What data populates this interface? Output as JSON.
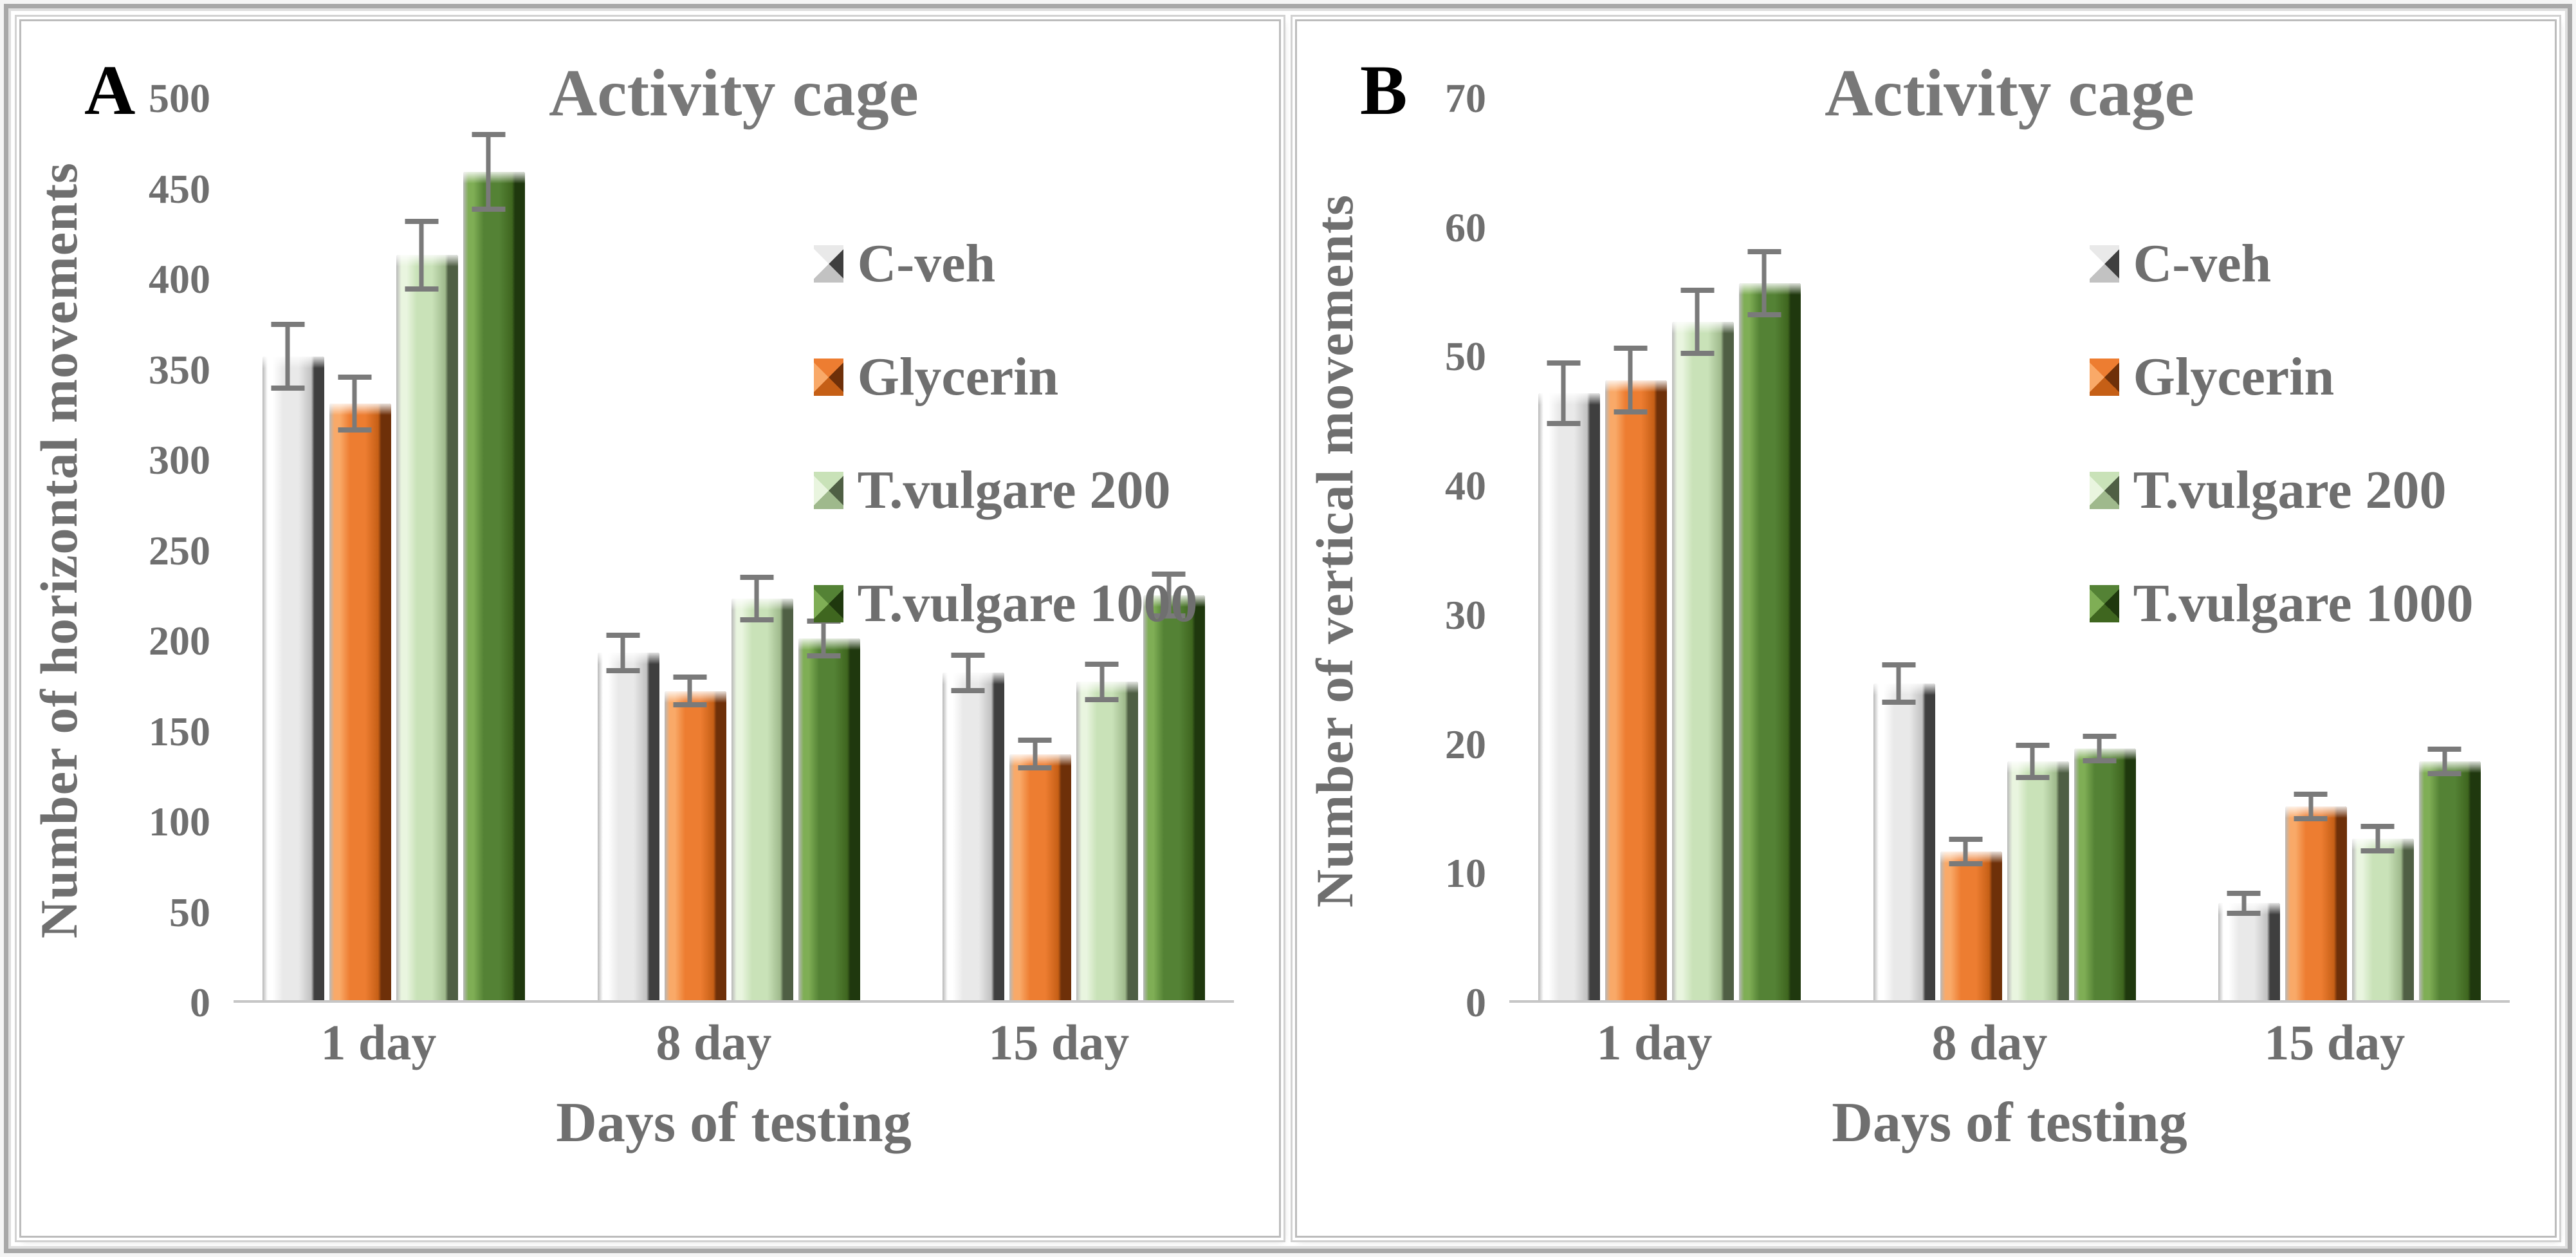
{
  "figure": {
    "panel_count": 2,
    "style": {
      "text_color": "#6f6f6f",
      "title_color": "#787878",
      "panel_letter_color": "#000000",
      "error_bar_color": "#7a7a7a",
      "axis_line_color": "#c6c6c6",
      "background": "#ffffff"
    }
  },
  "chart_data": [
    {
      "type": "bar",
      "panel_label": "A",
      "title": "Activity cage",
      "ylabel": "Number of horizontal movements",
      "xlabel": "Days of testing",
      "ylim": [
        0,
        500
      ],
      "ytick_step": 50,
      "yticks": [
        500,
        450,
        400,
        350,
        300,
        250,
        200,
        150,
        100,
        50,
        0
      ],
      "grid": false,
      "legend_position": "upper right",
      "categories": [
        "1 day",
        "8 day",
        "15 day"
      ],
      "group_centers": [
        16,
        49.5,
        84
      ],
      "label_centers": [
        14.5,
        48,
        82.5
      ],
      "series": [
        {
          "name": "C-veh",
          "color": "#e9e9e9",
          "light": "#ffffff",
          "shade": "#c2c2c2",
          "dark": "#3f3f3f",
          "values": [
            356,
            192,
            181
          ],
          "errors": [
            18,
            10,
            10
          ]
        },
        {
          "name": "Glycerin",
          "color": "#ed7d31",
          "light": "#f9a968",
          "shade": "#c55f16",
          "dark": "#6e3009",
          "values": [
            330,
            171,
            136
          ],
          "errors": [
            15,
            8,
            8
          ]
        },
        {
          "name": "T.vulgare 200",
          "color": "#c9e2b8",
          "light": "#e9f5df",
          "shade": "#9fb98c",
          "dark": "#4f5f44",
          "values": [
            412,
            222,
            176
          ],
          "errors": [
            19,
            12,
            10
          ]
        },
        {
          "name": "T.vulgare 1000",
          "color": "#548235",
          "light": "#7fae55",
          "shade": "#3f661f",
          "dark": "#1f380e",
          "values": [
            458,
            200,
            224
          ],
          "errors": [
            21,
            10,
            12
          ]
        }
      ]
    },
    {
      "type": "bar",
      "panel_label": "B",
      "title": "Activity cage",
      "ylabel": "Number of vertical movements",
      "xlabel": "Days of testing",
      "ylim": [
        0,
        70
      ],
      "ytick_step": 10,
      "yticks": [
        70,
        60,
        50,
        40,
        30,
        20,
        10,
        0
      ],
      "grid": false,
      "legend_position": "upper right",
      "categories": [
        "1 day",
        "8 day",
        "15 day"
      ],
      "group_centers": [
        16,
        49.5,
        84
      ],
      "label_centers": [
        14.5,
        48,
        82.5
      ],
      "series": [
        {
          "name": "C-veh",
          "color": "#e9e9e9",
          "light": "#ffffff",
          "shade": "#c2c2c2",
          "dark": "#3f3f3f",
          "values": [
            47,
            24.5,
            7.5
          ],
          "errors": [
            2.4,
            1.5,
            0.8
          ]
        },
        {
          "name": "Glycerin",
          "color": "#ed7d31",
          "light": "#f9a968",
          "shade": "#c55f16",
          "dark": "#6e3009",
          "values": [
            48,
            11.5,
            15
          ],
          "errors": [
            2.5,
            1,
            1
          ]
        },
        {
          "name": "T.vulgare 200",
          "color": "#c9e2b8",
          "light": "#e9f5df",
          "shade": "#9fb98c",
          "dark": "#4f5f44",
          "values": [
            52.5,
            18.5,
            12.5
          ],
          "errors": [
            2.5,
            1.3,
            1
          ]
        },
        {
          "name": "T.vulgare 1000",
          "color": "#548235",
          "light": "#7fae55",
          "shade": "#3f661f",
          "dark": "#1f380e",
          "values": [
            55.5,
            19.5,
            18.5
          ],
          "errors": [
            2.5,
            1,
            1
          ]
        }
      ]
    }
  ]
}
